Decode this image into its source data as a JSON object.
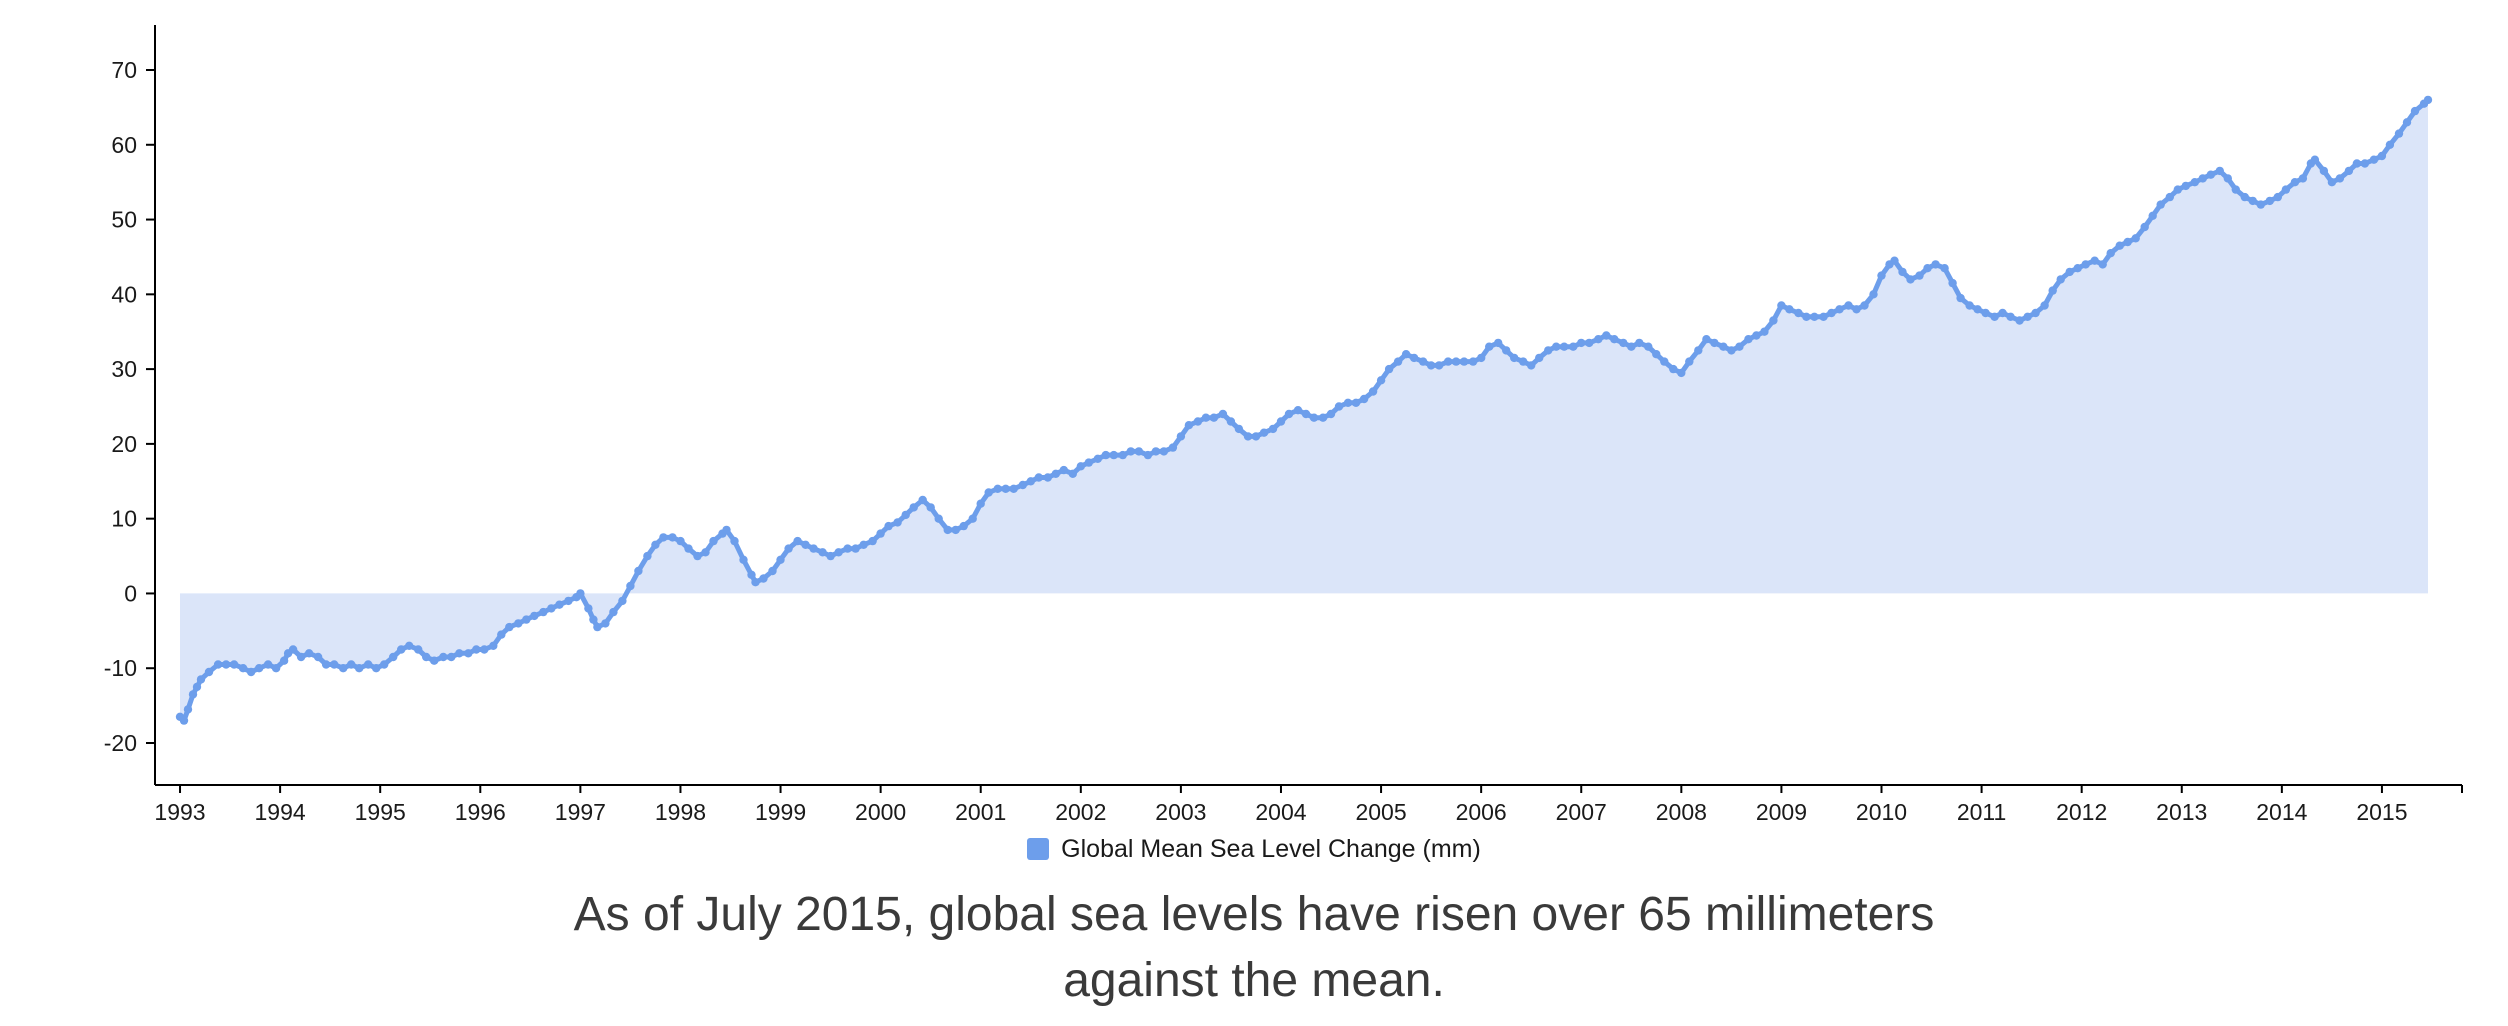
{
  "page": {
    "background": "#ffffff"
  },
  "chart_data": {
    "type": "area",
    "title": "",
    "xlabel": "",
    "ylabel": "",
    "xlim": [
      1992.75,
      2015.7
    ],
    "ylim": [
      -20,
      70
    ],
    "baseline": 0,
    "x_ticks": [
      1993,
      1994,
      1995,
      1996,
      1997,
      1998,
      1999,
      2000,
      2001,
      2002,
      2003,
      2004,
      2005,
      2006,
      2007,
      2008,
      2009,
      2010,
      2011,
      2012,
      2013,
      2014,
      2015
    ],
    "y_ticks": [
      -20,
      -10,
      0,
      10,
      20,
      30,
      40,
      50,
      60,
      70
    ],
    "grid": false,
    "legend_position": "bottom",
    "series": [
      {
        "name": "Global Mean Sea Level Change (mm)",
        "color": "#6d9eeb",
        "fill": "#dbe5f9",
        "points": [
          [
            1993.0,
            -16.5
          ],
          [
            1993.04,
            -17
          ],
          [
            1993.08,
            -15.5
          ],
          [
            1993.13,
            -13.5
          ],
          [
            1993.17,
            -12.5
          ],
          [
            1993.21,
            -11.5
          ],
          [
            1993.29,
            -10.5
          ],
          [
            1993.38,
            -9.5
          ],
          [
            1993.46,
            -9.5
          ],
          [
            1993.54,
            -9.5
          ],
          [
            1993.63,
            -10
          ],
          [
            1993.71,
            -10.5
          ],
          [
            1993.79,
            -10
          ],
          [
            1993.88,
            -9.5
          ],
          [
            1993.96,
            -10
          ],
          [
            1994.04,
            -9
          ],
          [
            1994.08,
            -8
          ],
          [
            1994.13,
            -7.5
          ],
          [
            1994.21,
            -8.5
          ],
          [
            1994.29,
            -8
          ],
          [
            1994.38,
            -8.5
          ],
          [
            1994.46,
            -9.5
          ],
          [
            1994.54,
            -9.5
          ],
          [
            1994.63,
            -10
          ],
          [
            1994.71,
            -9.5
          ],
          [
            1994.79,
            -10
          ],
          [
            1994.88,
            -9.5
          ],
          [
            1994.96,
            -10
          ],
          [
            1995.04,
            -9.5
          ],
          [
            1995.13,
            -8.5
          ],
          [
            1995.21,
            -7.5
          ],
          [
            1995.29,
            -7
          ],
          [
            1995.38,
            -7.5
          ],
          [
            1995.46,
            -8.5
          ],
          [
            1995.54,
            -9
          ],
          [
            1995.63,
            -8.5
          ],
          [
            1995.71,
            -8.5
          ],
          [
            1995.79,
            -8
          ],
          [
            1995.88,
            -8
          ],
          [
            1995.96,
            -7.5
          ],
          [
            1996.04,
            -7.5
          ],
          [
            1996.13,
            -7
          ],
          [
            1996.21,
            -5.5
          ],
          [
            1996.29,
            -4.5
          ],
          [
            1996.38,
            -4
          ],
          [
            1996.46,
            -3.5
          ],
          [
            1996.54,
            -3
          ],
          [
            1996.63,
            -2.5
          ],
          [
            1996.71,
            -2
          ],
          [
            1996.79,
            -1.5
          ],
          [
            1996.88,
            -1
          ],
          [
            1996.96,
            -0.5
          ],
          [
            1997.0,
            0
          ],
          [
            1997.08,
            -2
          ],
          [
            1997.13,
            -3.5
          ],
          [
            1997.17,
            -4.5
          ],
          [
            1997.25,
            -4
          ],
          [
            1997.33,
            -2.5
          ],
          [
            1997.42,
            -1
          ],
          [
            1997.5,
            1
          ],
          [
            1997.58,
            3
          ],
          [
            1997.67,
            5
          ],
          [
            1997.75,
            6.5
          ],
          [
            1997.83,
            7.5
          ],
          [
            1997.92,
            7.5
          ],
          [
            1998.0,
            7
          ],
          [
            1998.08,
            6
          ],
          [
            1998.17,
            5
          ],
          [
            1998.25,
            5.5
          ],
          [
            1998.33,
            7
          ],
          [
            1998.42,
            8
          ],
          [
            1998.46,
            8.5
          ],
          [
            1998.54,
            7
          ],
          [
            1998.63,
            4.5
          ],
          [
            1998.71,
            2.5
          ],
          [
            1998.75,
            1.5
          ],
          [
            1998.83,
            2
          ],
          [
            1998.92,
            3
          ],
          [
            1999.0,
            4.5
          ],
          [
            1999.08,
            6
          ],
          [
            1999.17,
            7
          ],
          [
            1999.25,
            6.5
          ],
          [
            1999.33,
            6
          ],
          [
            1999.42,
            5.5
          ],
          [
            1999.5,
            5
          ],
          [
            1999.58,
            5.5
          ],
          [
            1999.67,
            6
          ],
          [
            1999.75,
            6
          ],
          [
            1999.83,
            6.5
          ],
          [
            1999.92,
            7
          ],
          [
            2000.0,
            8
          ],
          [
            2000.08,
            9
          ],
          [
            2000.17,
            9.5
          ],
          [
            2000.25,
            10.5
          ],
          [
            2000.33,
            11.5
          ],
          [
            2000.42,
            12.5
          ],
          [
            2000.5,
            11.5
          ],
          [
            2000.58,
            10
          ],
          [
            2000.67,
            8.5
          ],
          [
            2000.75,
            8.5
          ],
          [
            2000.83,
            9
          ],
          [
            2000.92,
            10
          ],
          [
            2001.0,
            12
          ],
          [
            2001.08,
            13.5
          ],
          [
            2001.17,
            14
          ],
          [
            2001.25,
            14
          ],
          [
            2001.33,
            14
          ],
          [
            2001.42,
            14.5
          ],
          [
            2001.5,
            15
          ],
          [
            2001.58,
            15.5
          ],
          [
            2001.67,
            15.5
          ],
          [
            2001.75,
            16
          ],
          [
            2001.83,
            16.5
          ],
          [
            2001.92,
            16
          ],
          [
            2002.0,
            17
          ],
          [
            2002.08,
            17.5
          ],
          [
            2002.17,
            18
          ],
          [
            2002.25,
            18.5
          ],
          [
            2002.33,
            18.5
          ],
          [
            2002.42,
            18.5
          ],
          [
            2002.5,
            19
          ],
          [
            2002.58,
            19
          ],
          [
            2002.67,
            18.5
          ],
          [
            2002.75,
            19
          ],
          [
            2002.83,
            19
          ],
          [
            2002.92,
            19.5
          ],
          [
            2003.0,
            21
          ],
          [
            2003.08,
            22.5
          ],
          [
            2003.17,
            23
          ],
          [
            2003.25,
            23.5
          ],
          [
            2003.33,
            23.5
          ],
          [
            2003.42,
            24
          ],
          [
            2003.5,
            23
          ],
          [
            2003.58,
            22
          ],
          [
            2003.67,
            21
          ],
          [
            2003.75,
            21
          ],
          [
            2003.83,
            21.5
          ],
          [
            2003.92,
            22
          ],
          [
            2004.0,
            23
          ],
          [
            2004.08,
            24
          ],
          [
            2004.17,
            24.5
          ],
          [
            2004.25,
            24
          ],
          [
            2004.33,
            23.5
          ],
          [
            2004.42,
            23.5
          ],
          [
            2004.5,
            24
          ],
          [
            2004.58,
            25
          ],
          [
            2004.67,
            25.5
          ],
          [
            2004.75,
            25.5
          ],
          [
            2004.83,
            26
          ],
          [
            2004.92,
            27
          ],
          [
            2005.0,
            28.5
          ],
          [
            2005.08,
            30
          ],
          [
            2005.17,
            31
          ],
          [
            2005.25,
            32
          ],
          [
            2005.33,
            31.5
          ],
          [
            2005.42,
            31
          ],
          [
            2005.5,
            30.5
          ],
          [
            2005.58,
            30.5
          ],
          [
            2005.67,
            31
          ],
          [
            2005.75,
            31
          ],
          [
            2005.83,
            31
          ],
          [
            2005.92,
            31
          ],
          [
            2006.0,
            31.5
          ],
          [
            2006.08,
            33
          ],
          [
            2006.17,
            33.5
          ],
          [
            2006.25,
            32.5
          ],
          [
            2006.33,
            31.5
          ],
          [
            2006.42,
            31
          ],
          [
            2006.5,
            30.5
          ],
          [
            2006.58,
            31.5
          ],
          [
            2006.67,
            32.5
          ],
          [
            2006.75,
            33
          ],
          [
            2006.83,
            33
          ],
          [
            2006.92,
            33
          ],
          [
            2007.0,
            33.5
          ],
          [
            2007.08,
            33.5
          ],
          [
            2007.17,
            34
          ],
          [
            2007.25,
            34.5
          ],
          [
            2007.33,
            34
          ],
          [
            2007.42,
            33.5
          ],
          [
            2007.5,
            33
          ],
          [
            2007.58,
            33.5
          ],
          [
            2007.67,
            33
          ],
          [
            2007.75,
            32
          ],
          [
            2007.83,
            31
          ],
          [
            2007.92,
            30
          ],
          [
            2008.0,
            29.5
          ],
          [
            2008.08,
            31
          ],
          [
            2008.17,
            32.5
          ],
          [
            2008.25,
            34
          ],
          [
            2008.33,
            33.5
          ],
          [
            2008.42,
            33
          ],
          [
            2008.5,
            32.5
          ],
          [
            2008.58,
            33
          ],
          [
            2008.67,
            34
          ],
          [
            2008.75,
            34.5
          ],
          [
            2008.83,
            35
          ],
          [
            2008.92,
            36.5
          ],
          [
            2009.0,
            38.5
          ],
          [
            2009.08,
            38
          ],
          [
            2009.17,
            37.5
          ],
          [
            2009.25,
            37
          ],
          [
            2009.33,
            37
          ],
          [
            2009.42,
            37
          ],
          [
            2009.5,
            37.5
          ],
          [
            2009.58,
            38
          ],
          [
            2009.67,
            38.5
          ],
          [
            2009.75,
            38
          ],
          [
            2009.83,
            38.5
          ],
          [
            2009.92,
            40
          ],
          [
            2010.0,
            42.5
          ],
          [
            2010.08,
            44
          ],
          [
            2010.13,
            44.5
          ],
          [
            2010.21,
            43
          ],
          [
            2010.29,
            42
          ],
          [
            2010.38,
            42.5
          ],
          [
            2010.46,
            43.5
          ],
          [
            2010.54,
            44
          ],
          [
            2010.63,
            43.5
          ],
          [
            2010.71,
            41.5
          ],
          [
            2010.79,
            39.5
          ],
          [
            2010.88,
            38.5
          ],
          [
            2010.96,
            38
          ],
          [
            2011.04,
            37.5
          ],
          [
            2011.13,
            37
          ],
          [
            2011.21,
            37.5
          ],
          [
            2011.29,
            37
          ],
          [
            2011.38,
            36.5
          ],
          [
            2011.46,
            37
          ],
          [
            2011.54,
            37.5
          ],
          [
            2011.63,
            38.5
          ],
          [
            2011.71,
            40.5
          ],
          [
            2011.79,
            42
          ],
          [
            2011.88,
            43
          ],
          [
            2011.96,
            43.5
          ],
          [
            2012.04,
            44
          ],
          [
            2012.13,
            44.5
          ],
          [
            2012.21,
            44
          ],
          [
            2012.29,
            45.5
          ],
          [
            2012.38,
            46.5
          ],
          [
            2012.46,
            47
          ],
          [
            2012.54,
            47.5
          ],
          [
            2012.63,
            49
          ],
          [
            2012.71,
            50.5
          ],
          [
            2012.79,
            52
          ],
          [
            2012.88,
            53
          ],
          [
            2012.96,
            54
          ],
          [
            2013.04,
            54.5
          ],
          [
            2013.13,
            55
          ],
          [
            2013.21,
            55.5
          ],
          [
            2013.29,
            56
          ],
          [
            2013.38,
            56.5
          ],
          [
            2013.46,
            55.5
          ],
          [
            2013.54,
            54
          ],
          [
            2013.63,
            53
          ],
          [
            2013.71,
            52.5
          ],
          [
            2013.79,
            52
          ],
          [
            2013.88,
            52.5
          ],
          [
            2013.96,
            53
          ],
          [
            2014.04,
            54
          ],
          [
            2014.13,
            55
          ],
          [
            2014.21,
            55.5
          ],
          [
            2014.29,
            57.5
          ],
          [
            2014.33,
            58
          ],
          [
            2014.42,
            56.5
          ],
          [
            2014.5,
            55
          ],
          [
            2014.58,
            55.5
          ],
          [
            2014.67,
            56.5
          ],
          [
            2014.75,
            57.5
          ],
          [
            2014.83,
            57.5
          ],
          [
            2014.92,
            58
          ],
          [
            2015.0,
            58.5
          ],
          [
            2015.08,
            60
          ],
          [
            2015.17,
            61.5
          ],
          [
            2015.25,
            63
          ],
          [
            2015.33,
            64.5
          ],
          [
            2015.42,
            65.5
          ],
          [
            2015.46,
            66
          ]
        ]
      }
    ]
  },
  "legend": {
    "label": "Global Mean Sea Level Change (mm)",
    "swatch_color": "#6d9eeb"
  },
  "caption": {
    "text": "As of July 2015, global sea levels have risen over 65 millimeters against the mean."
  }
}
